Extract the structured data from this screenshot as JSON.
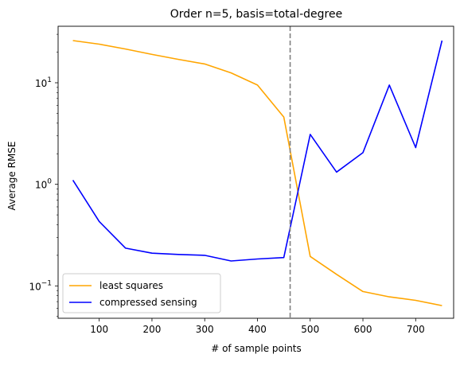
{
  "chart_data": {
    "type": "line",
    "title": "Order n=5, basis=total-degree",
    "xlabel": "# of sample points",
    "ylabel": "Average RMSE",
    "yscale": "log",
    "xlim": [
      22,
      772
    ],
    "ylim": [
      0.048,
      36
    ],
    "x_ticks": [
      100,
      200,
      300,
      400,
      500,
      600,
      700
    ],
    "y_ticks": [
      {
        "value": 0.1,
        "label": "10",
        "exp": "−1"
      },
      {
        "value": 1,
        "label": "10",
        "exp": "0"
      },
      {
        "value": 10,
        "label": "10",
        "exp": "1"
      }
    ],
    "x": [
      50,
      100,
      150,
      200,
      250,
      300,
      350,
      400,
      450,
      500,
      550,
      600,
      650,
      700,
      750
    ],
    "series": [
      {
        "name": "least squares",
        "color": "#ffa500",
        "values": [
          26,
          24,
          21.5,
          19,
          17,
          15.3,
          12.5,
          9.5,
          4.6,
          0.195,
          0.13,
          0.088,
          0.078,
          0.072,
          0.064
        ]
      },
      {
        "name": "compressed sensing",
        "color": "#0000ff",
        "values": [
          1.1,
          0.43,
          0.235,
          0.21,
          0.204,
          0.2,
          0.176,
          0.184,
          0.19,
          3.1,
          1.32,
          2.05,
          9.5,
          2.3,
          26
        ]
      }
    ],
    "vline": {
      "x": 462,
      "color": "#808080",
      "style": "dashed"
    },
    "legend": {
      "position": "lower-left"
    },
    "grid": false
  }
}
